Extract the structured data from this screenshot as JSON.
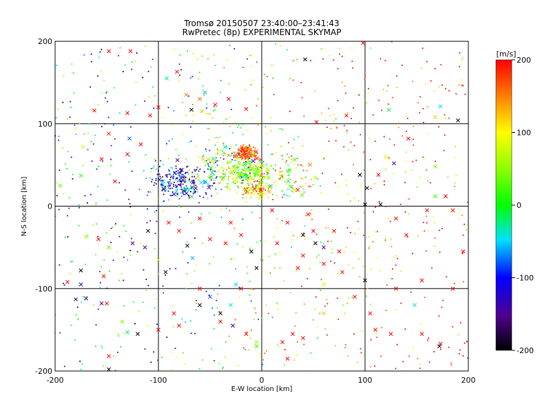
{
  "chart_data": {
    "type": "scatter",
    "title": "Tromsø 20150507 23:40:00–23:41:43",
    "subtitle": "RwPretec (8p) EXPERIMENTAL SKYMAP",
    "xlabel": "E-W location [km]",
    "ylabel": "N-S location [km]",
    "xlim": [
      -200,
      200
    ],
    "ylim": [
      -200,
      200
    ],
    "x_ticks": [
      "-200",
      "-100",
      "0",
      "100",
      "200"
    ],
    "y_ticks": [
      "-200",
      "-100",
      "0",
      "100",
      "200"
    ],
    "grid_at": [
      -100,
      0,
      100
    ],
    "markers": [
      "small dot",
      "x"
    ],
    "colorbar": {
      "label": "[m/s]",
      "range": [
        -200,
        200
      ],
      "ticks": [
        "200",
        "100",
        "0",
        "-100",
        "-200"
      ],
      "colormap": "black-purple-blue-cyan-green-yellow-red"
    },
    "dense_clusters": [
      {
        "x": -15,
        "y": 65,
        "spread": 8,
        "n": 140,
        "vmin": 130,
        "vmax": 200
      },
      {
        "x": -15,
        "y": 40,
        "spread": 14,
        "n": 200,
        "vmin": -20,
        "vmax": 120
      },
      {
        "x": -80,
        "y": 30,
        "spread": 20,
        "n": 230,
        "vmin": -200,
        "vmax": -20
      },
      {
        "x": -40,
        "y": 45,
        "spread": 25,
        "n": 140,
        "vmin": -150,
        "vmax": 150
      },
      {
        "x": -5,
        "y": 20,
        "spread": 10,
        "n": 90,
        "vmin": 60,
        "vmax": 200
      },
      {
        "x": 20,
        "y": 35,
        "spread": 25,
        "n": 110,
        "vmin": -50,
        "vmax": 200
      }
    ],
    "scattered_points": [
      [
        -148,
        188,
        200,
        "x"
      ],
      [
        -127,
        188,
        200,
        "x"
      ],
      [
        -82,
        163,
        200,
        "x"
      ],
      [
        -92,
        155,
        -30,
        "x"
      ],
      [
        -73,
        135,
        150,
        "x"
      ],
      [
        -60,
        130,
        160,
        "x"
      ],
      [
        -55,
        138,
        -60,
        "x"
      ],
      [
        -45,
        123,
        200,
        "x"
      ],
      [
        -32,
        130,
        200,
        "x"
      ],
      [
        98,
        198,
        200,
        "x"
      ],
      [
        42,
        178,
        -200,
        "x"
      ],
      [
        123,
        117,
        -20,
        "x"
      ],
      [
        173,
        121,
        -40,
        "x"
      ],
      [
        168,
        108,
        120,
        "x"
      ],
      [
        190,
        104,
        -200,
        "x"
      ],
      [
        -162,
        116,
        200,
        "x"
      ],
      [
        -130,
        113,
        200,
        "x"
      ],
      [
        -100,
        120,
        200,
        "x"
      ],
      [
        -58,
        115,
        120,
        "x"
      ],
      [
        -68,
        117,
        -200,
        "x"
      ],
      [
        -15,
        118,
        200,
        "x"
      ],
      [
        82,
        110,
        200,
        "x"
      ],
      [
        53,
        102,
        200,
        "x"
      ],
      [
        -108,
        110,
        200,
        "x"
      ],
      [
        -117,
        75,
        200,
        "x"
      ],
      [
        -128,
        82,
        -80,
        "x"
      ],
      [
        -173,
        72,
        80,
        "x"
      ],
      [
        -175,
        37,
        20,
        "x"
      ],
      [
        -195,
        25,
        40,
        "x"
      ],
      [
        -148,
        88,
        180,
        "x"
      ],
      [
        -155,
        57,
        200,
        "x"
      ],
      [
        -142,
        30,
        200,
        "x"
      ],
      [
        -130,
        63,
        200,
        "x"
      ],
      [
        120,
        60,
        80,
        "x"
      ],
      [
        128,
        52,
        -150,
        "x"
      ],
      [
        142,
        82,
        200,
        "x"
      ],
      [
        168,
        48,
        60,
        "x"
      ],
      [
        178,
        12,
        200,
        "x"
      ],
      [
        168,
        12,
        20,
        "x"
      ],
      [
        113,
        38,
        200,
        "x"
      ],
      [
        102,
        22,
        -200,
        "x"
      ],
      [
        95,
        38,
        -200,
        "x"
      ],
      [
        100,
        2,
        -200,
        "x"
      ],
      [
        115,
        2,
        -200,
        "x"
      ],
      [
        160,
        -5,
        200,
        "x"
      ],
      [
        130,
        -15,
        200,
        "x"
      ],
      [
        140,
        -35,
        200,
        "x"
      ],
      [
        185,
        -5,
        200,
        "x"
      ],
      [
        195,
        -55,
        200,
        "x"
      ],
      [
        70,
        -30,
        200,
        "x"
      ],
      [
        50,
        -30,
        200,
        "x"
      ],
      [
        40,
        -35,
        -200,
        "x"
      ],
      [
        52,
        -45,
        -200,
        "x"
      ],
      [
        60,
        -50,
        -150,
        "x"
      ],
      [
        75,
        -55,
        200,
        "x"
      ],
      [
        60,
        -70,
        200,
        "x"
      ],
      [
        40,
        -60,
        200,
        "x"
      ],
      [
        35,
        -75,
        200,
        "x"
      ],
      [
        -30,
        -20,
        200,
        "x"
      ],
      [
        -20,
        -35,
        200,
        "x"
      ],
      [
        -35,
        -45,
        200,
        "x"
      ],
      [
        -50,
        -40,
        200,
        "x"
      ],
      [
        -72,
        -48,
        -200,
        "x"
      ],
      [
        -67,
        -63,
        -60,
        "x"
      ],
      [
        -80,
        -30,
        200,
        "x"
      ],
      [
        -90,
        -20,
        200,
        "x"
      ],
      [
        -110,
        -30,
        -200,
        "x"
      ],
      [
        -113,
        -50,
        -150,
        "x"
      ],
      [
        -125,
        -45,
        -150,
        "x"
      ],
      [
        -100,
        -65,
        100,
        "x"
      ],
      [
        -93,
        -80,
        -200,
        "x"
      ],
      [
        -148,
        -50,
        40,
        "x"
      ],
      [
        -158,
        -40,
        200,
        "x"
      ],
      [
        -170,
        -37,
        60,
        "x"
      ],
      [
        -153,
        -85,
        200,
        "x"
      ],
      [
        -175,
        -78,
        -200,
        "x"
      ],
      [
        -188,
        -92,
        200,
        "x"
      ],
      [
        -175,
        -95,
        -140,
        "x"
      ],
      [
        -180,
        -113,
        -160,
        "x"
      ],
      [
        -170,
        -112,
        -150,
        "x"
      ],
      [
        -155,
        -118,
        -140,
        "x"
      ],
      [
        -150,
        -118,
        200,
        "x"
      ],
      [
        -135,
        -140,
        40,
        "x"
      ],
      [
        -130,
        -153,
        -20,
        "x"
      ],
      [
        -148,
        -182,
        200,
        "x"
      ],
      [
        -148,
        -198,
        -200,
        "x"
      ],
      [
        -120,
        -155,
        -200,
        "x"
      ],
      [
        -100,
        -150,
        200,
        "x"
      ],
      [
        -80,
        -145,
        200,
        "x"
      ],
      [
        -85,
        -130,
        200,
        "x"
      ],
      [
        -60,
        -100,
        200,
        "x"
      ],
      [
        -60,
        -120,
        -200,
        "x"
      ],
      [
        -20,
        -100,
        200,
        "x"
      ],
      [
        -30,
        -120,
        -40,
        "x"
      ],
      [
        -40,
        -140,
        200,
        "x"
      ],
      [
        -15,
        -155,
        200,
        "x"
      ],
      [
        -5,
        -165,
        60,
        "x"
      ],
      [
        -5,
        -170,
        20,
        "x"
      ],
      [
        -28,
        -145,
        -140,
        "x"
      ],
      [
        -40,
        -130,
        -200,
        "x"
      ],
      [
        -50,
        -110,
        -80,
        "x"
      ],
      [
        20,
        -165,
        200,
        "x"
      ],
      [
        25,
        -185,
        200,
        "x"
      ],
      [
        30,
        -155,
        200,
        "x"
      ],
      [
        40,
        -160,
        200,
        "x"
      ],
      [
        60,
        -130,
        120,
        "x"
      ],
      [
        90,
        -110,
        200,
        "x"
      ],
      [
        105,
        -130,
        200,
        "x"
      ],
      [
        110,
        -150,
        200,
        "x"
      ],
      [
        125,
        -155,
        200,
        "x"
      ],
      [
        155,
        -155,
        200,
        "x"
      ],
      [
        173,
        -167,
        200,
        "x"
      ],
      [
        172,
        -170,
        -200,
        "x"
      ],
      [
        185,
        -100,
        200,
        "x"
      ],
      [
        155,
        -90,
        200,
        "x"
      ],
      [
        148,
        -120,
        -40,
        "x"
      ],
      [
        130,
        -100,
        200,
        "x"
      ],
      [
        100,
        -90,
        -200,
        "x"
      ],
      [
        78,
        -80,
        200,
        "x"
      ],
      [
        60,
        -95,
        80,
        "x"
      ],
      [
        -25,
        -95,
        -40,
        "x"
      ],
      [
        -5,
        -75,
        -200,
        "x"
      ],
      [
        -10,
        -55,
        -200,
        "x"
      ],
      [
        -60,
        -15,
        200,
        "x"
      ],
      [
        15,
        -45,
        200,
        "x"
      ],
      [
        25,
        -20,
        200,
        "x"
      ],
      [
        10,
        -5,
        200,
        "x"
      ],
      [
        45,
        -10,
        200,
        "x"
      ]
    ]
  }
}
